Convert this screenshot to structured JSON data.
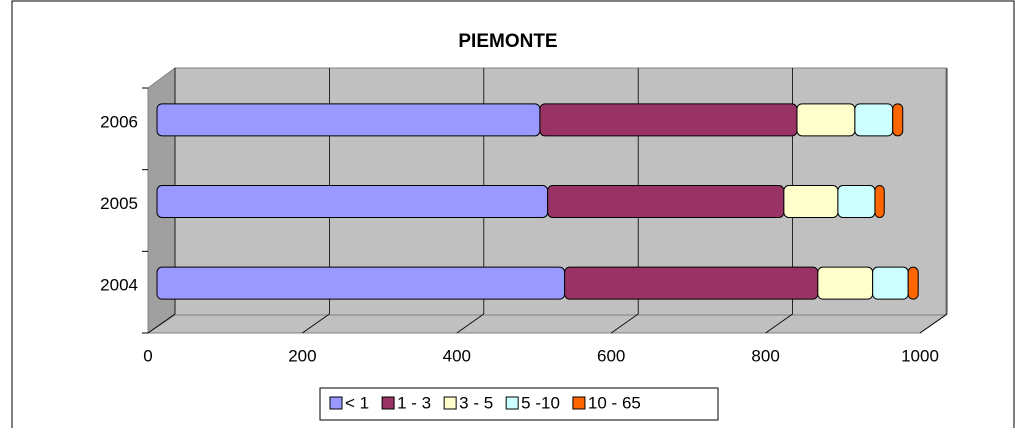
{
  "chart_data": {
    "type": "bar",
    "orientation": "horizontal",
    "stacked": true,
    "title": "PIEMONTE",
    "categories": [
      "2004",
      "2005",
      "2006"
    ],
    "series": [
      {
        "name": "< 1",
        "color": "#9999ff",
        "values": [
          528,
          506,
          496
        ]
      },
      {
        "name": "1 - 3",
        "color": "#993366",
        "values": [
          328,
          306,
          333
        ]
      },
      {
        "name": "3 - 5",
        "color": "#ffffcc",
        "values": [
          71,
          70,
          75
        ]
      },
      {
        "name": "5 -10",
        "color": "#ccffff",
        "values": [
          46,
          48,
          49
        ]
      },
      {
        "name": "10 - 65",
        "color": "#ff6600",
        "values": [
          13,
          12,
          13
        ]
      }
    ],
    "xlim": [
      0,
      1000
    ],
    "xticks": [
      0,
      200,
      400,
      600,
      800,
      1000
    ],
    "grid": true,
    "legend": "bottom"
  }
}
